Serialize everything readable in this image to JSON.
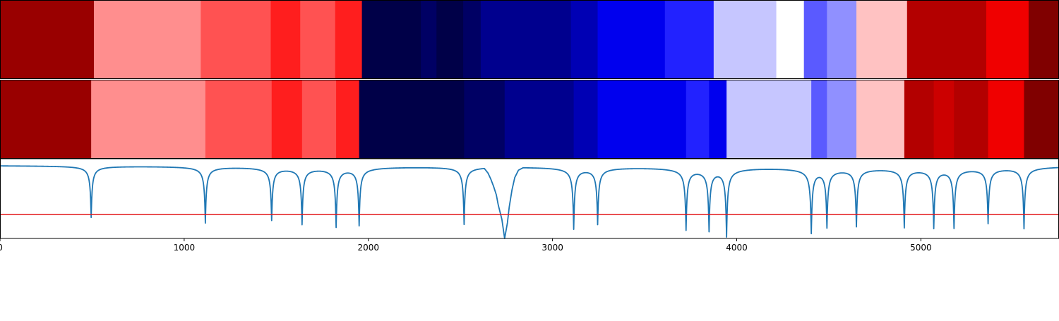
{
  "chart_data": {
    "type": "heatmap",
    "title": "",
    "xlabel": "",
    "ylabel": "",
    "xlim": [
      0,
      5750
    ],
    "x_ticks": [
      0,
      1000,
      2000,
      3000,
      4000,
      5000
    ],
    "x_tick_labels": [
      "0",
      "1000",
      "2000",
      "3000",
      "4000",
      "5000"
    ],
    "colormap": "seismic",
    "rows": [
      {
        "segments": [
          {
            "start": 0,
            "end": 510,
            "color": "#990000"
          },
          {
            "start": 510,
            "end": 1090,
            "color": "#ff8e8e"
          },
          {
            "start": 1090,
            "end": 1470,
            "color": "#ff5252"
          },
          {
            "start": 1470,
            "end": 1630,
            "color": "#ff1e1e"
          },
          {
            "start": 1630,
            "end": 1820,
            "color": "#ff5252"
          },
          {
            "start": 1820,
            "end": 1965,
            "color": "#ff1e1e"
          },
          {
            "start": 1965,
            "end": 2285,
            "color": "#000048"
          },
          {
            "start": 2285,
            "end": 2370,
            "color": "#000064"
          },
          {
            "start": 2370,
            "end": 2515,
            "color": "#000048"
          },
          {
            "start": 2515,
            "end": 2610,
            "color": "#000064"
          },
          {
            "start": 2610,
            "end": 3100,
            "color": "#00008e"
          },
          {
            "start": 3100,
            "end": 3245,
            "color": "#0000b4"
          },
          {
            "start": 3245,
            "end": 3610,
            "color": "#0000ee"
          },
          {
            "start": 3610,
            "end": 3875,
            "color": "#2222ff"
          },
          {
            "start": 3875,
            "end": 4215,
            "color": "#c6c6ff"
          },
          {
            "start": 4215,
            "end": 4365,
            "color": "#ffffff"
          },
          {
            "start": 4365,
            "end": 4490,
            "color": "#5a5aff"
          },
          {
            "start": 4490,
            "end": 4650,
            "color": "#9090ff"
          },
          {
            "start": 4650,
            "end": 4925,
            "color": "#ffc2c2"
          },
          {
            "start": 4925,
            "end": 5355,
            "color": "#b30000"
          },
          {
            "start": 5355,
            "end": 5585,
            "color": "#f00000"
          },
          {
            "start": 5585,
            "end": 5750,
            "color": "#800000"
          }
        ]
      },
      {
        "segments": [
          {
            "start": 0,
            "end": 495,
            "color": "#990000"
          },
          {
            "start": 495,
            "end": 1115,
            "color": "#ff8e8e"
          },
          {
            "start": 1115,
            "end": 1475,
            "color": "#ff5252"
          },
          {
            "start": 1475,
            "end": 1640,
            "color": "#ff1e1e"
          },
          {
            "start": 1640,
            "end": 1825,
            "color": "#ff5252"
          },
          {
            "start": 1825,
            "end": 1950,
            "color": "#ff1e1e"
          },
          {
            "start": 1950,
            "end": 2520,
            "color": "#000048"
          },
          {
            "start": 2520,
            "end": 2740,
            "color": "#000064"
          },
          {
            "start": 2740,
            "end": 3115,
            "color": "#00008e"
          },
          {
            "start": 3115,
            "end": 3245,
            "color": "#0000b4"
          },
          {
            "start": 3245,
            "end": 3725,
            "color": "#0000ee"
          },
          {
            "start": 3725,
            "end": 3850,
            "color": "#2222ff"
          },
          {
            "start": 3850,
            "end": 3945,
            "color": "#0000ee"
          },
          {
            "start": 3945,
            "end": 4405,
            "color": "#c6c6ff"
          },
          {
            "start": 4405,
            "end": 4490,
            "color": "#5a5aff"
          },
          {
            "start": 4490,
            "end": 4650,
            "color": "#9090ff"
          },
          {
            "start": 4650,
            "end": 4910,
            "color": "#ffc2c2"
          },
          {
            "start": 4910,
            "end": 5070,
            "color": "#b30000"
          },
          {
            "start": 5070,
            "end": 5180,
            "color": "#cc0000"
          },
          {
            "start": 5180,
            "end": 5365,
            "color": "#b30000"
          },
          {
            "start": 5365,
            "end": 5560,
            "color": "#f00000"
          },
          {
            "start": 5560,
            "end": 5750,
            "color": "#800000"
          }
        ]
      }
    ],
    "line_series": {
      "color": "#1f77b4",
      "ylim": [
        -0.6,
        0.05
      ],
      "baseline": 0,
      "dips": [
        {
          "x": 495,
          "depth": -0.42
        },
        {
          "x": 1115,
          "depth": -0.46
        },
        {
          "x": 1475,
          "depth": -0.43
        },
        {
          "x": 1640,
          "depth": -0.46
        },
        {
          "x": 1825,
          "depth": -0.48
        },
        {
          "x": 1950,
          "depth": -0.47
        },
        {
          "x": 2520,
          "depth": -0.47
        },
        {
          "x": 3115,
          "depth": -0.5
        },
        {
          "x": 3245,
          "depth": -0.46
        },
        {
          "x": 3725,
          "depth": -0.5
        },
        {
          "x": 3850,
          "depth": -0.5
        },
        {
          "x": 3945,
          "depth": -0.55
        },
        {
          "x": 4405,
          "depth": -0.52
        },
        {
          "x": 4490,
          "depth": -0.47
        },
        {
          "x": 4650,
          "depth": -0.47
        },
        {
          "x": 4910,
          "depth": -0.48
        },
        {
          "x": 5070,
          "depth": -0.48
        },
        {
          "x": 5180,
          "depth": -0.48
        },
        {
          "x": 5365,
          "depth": -0.45
        },
        {
          "x": 5560,
          "depth": -0.5
        }
      ],
      "broad_dip": {
        "points": [
          [
            2630,
            0
          ],
          [
            2650,
            -0.04
          ],
          [
            2665,
            -0.09
          ],
          [
            2680,
            -0.15
          ],
          [
            2695,
            -0.22
          ],
          [
            2705,
            -0.3
          ],
          [
            2715,
            -0.36
          ],
          [
            2725,
            -0.42
          ],
          [
            2740,
            -0.58
          ],
          [
            2755,
            -0.45
          ],
          [
            2765,
            -0.32
          ],
          [
            2780,
            -0.18
          ],
          [
            2795,
            -0.08
          ],
          [
            2815,
            -0.02
          ],
          [
            2840,
            0
          ]
        ]
      }
    },
    "threshold_line": {
      "y": -0.7,
      "color": "#e31a1c"
    },
    "threshold_ylim": [
      -1,
      0
    ]
  }
}
